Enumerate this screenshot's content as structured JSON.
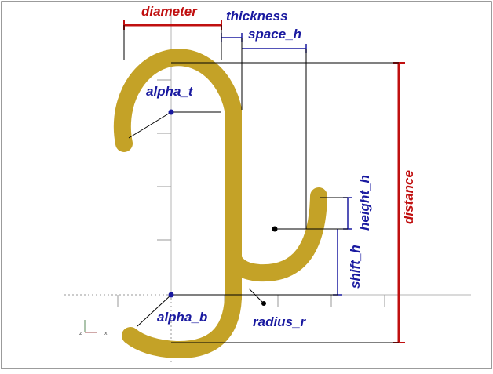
{
  "labels": {
    "diameter": "diameter",
    "thickness": "thickness",
    "space_h": "space_h",
    "alpha_t": "alpha_t",
    "alpha_b": "alpha_b",
    "height_h": "height_h",
    "shift_h": "shift_h",
    "radius_r": "radius_r",
    "distance": "distance"
  },
  "axes_indicator": {
    "z": "z",
    "x": "x"
  },
  "colors": {
    "hook": "#c4a227",
    "dimension_blue": "#1a1aa0",
    "dimension_red": "#c01010",
    "frame": "#7a7a7a",
    "guide": "#000000"
  }
}
